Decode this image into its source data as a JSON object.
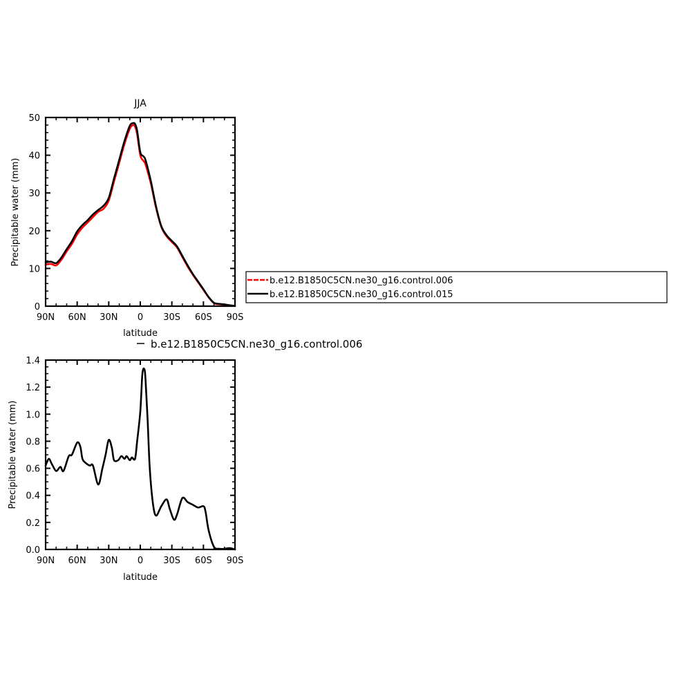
{
  "chart_data": [
    {
      "type": "line",
      "title": "JJA",
      "xlabel": "latitude",
      "ylabel": "Precipitable water (mm)",
      "xlim": [
        90,
        -90
      ],
      "ylim": [
        0,
        50
      ],
      "xticks": [
        {
          "value": 90,
          "label": "90N"
        },
        {
          "value": 60,
          "label": "60N"
        },
        {
          "value": 30,
          "label": "30N"
        },
        {
          "value": 0,
          "label": "0"
        },
        {
          "value": -30,
          "label": "30S"
        },
        {
          "value": -60,
          "label": "60S"
        },
        {
          "value": -90,
          "label": "90S"
        }
      ],
      "yticks": [
        0,
        10,
        20,
        30,
        40,
        50
      ],
      "legend": "right",
      "series": [
        {
          "name": "b.e12.B1850C5CN.ne30_g16.control.006",
          "color": "#ff0000",
          "x": [
            90,
            85,
            80,
            75,
            70,
            65,
            60,
            55,
            50,
            45,
            40,
            35,
            30,
            25,
            20,
            15,
            10,
            7,
            5,
            3,
            0,
            -3,
            -5,
            -10,
            -15,
            -20,
            -25,
            -30,
            -35,
            -40,
            -45,
            -50,
            -55,
            -60,
            -65,
            -70,
            -75,
            -80,
            -85,
            -90
          ],
          "y": [
            11.0,
            11.2,
            10.8,
            12.3,
            14.5,
            16.5,
            19.0,
            20.8,
            22.2,
            23.6,
            25.0,
            25.8,
            28.0,
            33.0,
            38.0,
            43.0,
            47.0,
            48.0,
            47.6,
            45.5,
            40.0,
            38.5,
            37.5,
            32.5,
            26.0,
            21.0,
            18.5,
            17.0,
            15.5,
            13.0,
            10.5,
            8.3,
            6.3,
            4.3,
            2.3,
            0.8,
            0.5,
            0.4,
            0.2,
            0.05
          ]
        },
        {
          "name": "b.e12.B1850C5CN.ne30_g16.control.015",
          "color": "#000000",
          "x": [
            90,
            85,
            80,
            75,
            70,
            65,
            60,
            55,
            50,
            45,
            40,
            35,
            30,
            25,
            20,
            15,
            10,
            7,
            5,
            3,
            0,
            -3,
            -5,
            -10,
            -15,
            -20,
            -25,
            -30,
            -35,
            -40,
            -45,
            -50,
            -55,
            -60,
            -65,
            -70,
            -75,
            -80,
            -85,
            -90
          ],
          "y": [
            11.6,
            11.8,
            11.4,
            12.9,
            15.1,
            17.2,
            19.8,
            21.5,
            22.8,
            24.3,
            25.5,
            26.6,
            28.7,
            33.8,
            38.8,
            43.8,
            47.8,
            48.5,
            48.3,
            46.5,
            40.8,
            39.7,
            38.7,
            33.2,
            26.4,
            21.2,
            18.8,
            17.3,
            15.8,
            13.3,
            10.8,
            8.5,
            6.5,
            4.5,
            2.4,
            0.9,
            0.6,
            0.45,
            0.25,
            0.05
          ]
        }
      ]
    },
    {
      "type": "line",
      "title": "b.e12.B1850C5CN.ne30_g16.control.006",
      "xlabel": "latitude",
      "ylabel": "Precipitable water (mm)",
      "xlim": [
        90,
        -90
      ],
      "ylim": [
        0,
        1.4
      ],
      "xticks": [
        {
          "value": 90,
          "label": "90N"
        },
        {
          "value": 60,
          "label": "60N"
        },
        {
          "value": 30,
          "label": "30N"
        },
        {
          "value": 0,
          "label": "0"
        },
        {
          "value": -30,
          "label": "30S"
        },
        {
          "value": -60,
          "label": "60S"
        },
        {
          "value": -90,
          "label": "90S"
        }
      ],
      "yticks": [
        "0.0",
        "0.2",
        "0.4",
        "0.6",
        "0.8",
        "1.0",
        "1.2",
        "1.4"
      ],
      "series": [
        {
          "color": "#000000",
          "x": [
            90,
            87,
            84,
            80,
            76,
            73,
            68,
            65,
            60,
            57,
            55,
            52,
            48,
            45,
            40,
            36,
            33,
            30,
            27,
            25,
            21,
            18,
            15,
            13,
            10,
            8,
            5,
            3,
            0,
            -2,
            -4,
            -5,
            -7,
            -9,
            -12,
            -15,
            -20,
            -25,
            -28,
            -32,
            -35,
            -40,
            -45,
            -50,
            -55,
            -60,
            -62,
            -65,
            -70,
            -75,
            -80,
            -85,
            -90
          ],
          "y": [
            0.62,
            0.67,
            0.63,
            0.58,
            0.61,
            0.58,
            0.69,
            0.7,
            0.79,
            0.76,
            0.67,
            0.64,
            0.62,
            0.62,
            0.48,
            0.6,
            0.7,
            0.81,
            0.75,
            0.66,
            0.66,
            0.69,
            0.67,
            0.69,
            0.66,
            0.68,
            0.67,
            0.8,
            1.02,
            1.3,
            1.33,
            1.25,
            0.95,
            0.6,
            0.34,
            0.25,
            0.32,
            0.37,
            0.3,
            0.22,
            0.26,
            0.38,
            0.35,
            0.33,
            0.31,
            0.32,
            0.28,
            0.14,
            0.02,
            0.005,
            0.005,
            0.01,
            0.0
          ]
        }
      ]
    }
  ]
}
